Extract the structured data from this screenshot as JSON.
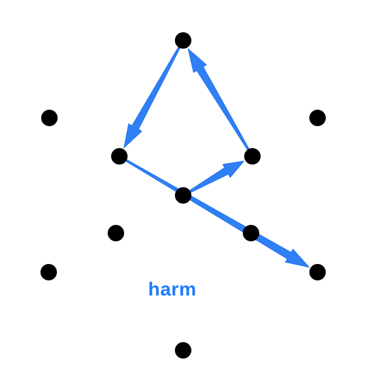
{
  "pattern": {
    "word": "harm",
    "dot_color": "#000000",
    "arrow_color": "#2f7ff5",
    "dots": [
      {
        "id": "top"
      },
      {
        "id": "upper-left"
      },
      {
        "id": "upper-right"
      },
      {
        "id": "mid-left"
      },
      {
        "id": "mid-right"
      },
      {
        "id": "center"
      },
      {
        "id": "lower-left-inner"
      },
      {
        "id": "lower-right-inner"
      },
      {
        "id": "lower-left"
      },
      {
        "id": "lower-right"
      },
      {
        "id": "bottom"
      }
    ],
    "path": [
      {
        "from": "top",
        "to": "mid-left"
      },
      {
        "from": "mid-left",
        "to": "lower-right"
      },
      {
        "from": "center",
        "to": "mid-right"
      },
      {
        "from": "mid-right",
        "to": "top"
      }
    ]
  }
}
